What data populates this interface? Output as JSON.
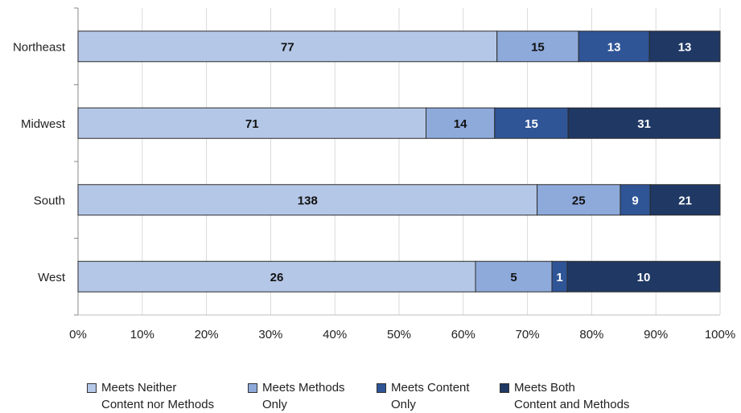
{
  "chart_data": {
    "type": "bar",
    "orientation": "horizontal",
    "stacked": "percent",
    "categories": [
      "Northeast",
      "Midwest",
      "South",
      "West"
    ],
    "series": [
      {
        "name": "Meets Neither\nContent nor Methods",
        "color": "#b4c7e7",
        "values": [
          77,
          71,
          138,
          26
        ]
      },
      {
        "name": "Meets Methods\nOnly",
        "color": "#8eaadb",
        "values": [
          15,
          14,
          25,
          5
        ]
      },
      {
        "name": "Meets Content\nOnly",
        "color": "#2f5597",
        "values": [
          13,
          15,
          9,
          1
        ]
      },
      {
        "name": "Meets Both\nContent and Methods",
        "color": "#1f3864",
        "values": [
          13,
          31,
          21,
          10
        ]
      }
    ],
    "xticks": [
      "0%",
      "10%",
      "20%",
      "30%",
      "40%",
      "50%",
      "60%",
      "70%",
      "80%",
      "90%",
      "100%"
    ],
    "xlim": [
      0,
      100
    ],
    "grid": true,
    "legend_position": "bottom"
  }
}
